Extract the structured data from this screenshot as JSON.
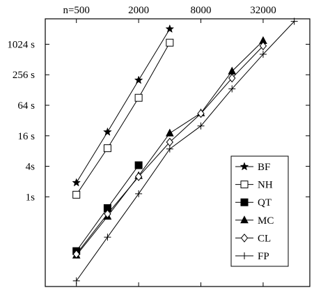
{
  "chart_data": {
    "type": "line",
    "title": "",
    "xlabel": "",
    "ylabel": "",
    "x_scale": "log2",
    "y_scale": "log2",
    "x_ticks": [
      {
        "value": 500,
        "label": "n=500"
      },
      {
        "value": 2000,
        "label": "2000"
      },
      {
        "value": 8000,
        "label": "8000"
      },
      {
        "value": 32000,
        "label": "32000"
      }
    ],
    "y_ticks": [
      {
        "value": 1,
        "label": "1s"
      },
      {
        "value": 4,
        "label": "4s"
      },
      {
        "value": 16,
        "label": "16 s"
      },
      {
        "value": 64,
        "label": "64 s"
      },
      {
        "value": 256,
        "label": "256 s"
      },
      {
        "value": 1024,
        "label": "1024 s"
      }
    ],
    "xlim": [
      250,
      90510
    ],
    "ylim": [
      0.017,
      3250
    ],
    "legend_position": "bottom-right",
    "grid": false,
    "series": [
      {
        "name": "BF",
        "marker": "star",
        "x": [
          500,
          1000,
          2000,
          4000
        ],
        "y": [
          1.9,
          19,
          200,
          2048
        ]
      },
      {
        "name": "NH",
        "marker": "open-square",
        "x": [
          500,
          1000,
          2000,
          4000
        ],
        "y": [
          1.1,
          9.1,
          90,
          1100
        ]
      },
      {
        "name": "QT",
        "marker": "filled-square",
        "x": [
          500,
          1000,
          2000
        ],
        "y": [
          0.085,
          0.6,
          4.2
        ]
      },
      {
        "name": "MC",
        "marker": "filled-triangle",
        "x": [
          500,
          1000,
          2000,
          4000,
          8000,
          16000,
          32000
        ],
        "y": [
          0.07,
          0.41,
          2.6,
          18,
          45,
          300,
          1200
        ]
      },
      {
        "name": "CL",
        "marker": "open-diamond",
        "x": [
          500,
          1000,
          2000,
          4000,
          8000,
          16000,
          32000
        ],
        "y": [
          0.074,
          0.46,
          2.5,
          12,
          44,
          220,
          950
        ]
      },
      {
        "name": "FP",
        "marker": "plus",
        "x": [
          500,
          1000,
          2000,
          4000,
          8000,
          16000,
          32000,
          64000
        ],
        "y": [
          0.022,
          0.16,
          1.15,
          8.8,
          25,
          135,
          650,
          2900
        ]
      }
    ]
  }
}
